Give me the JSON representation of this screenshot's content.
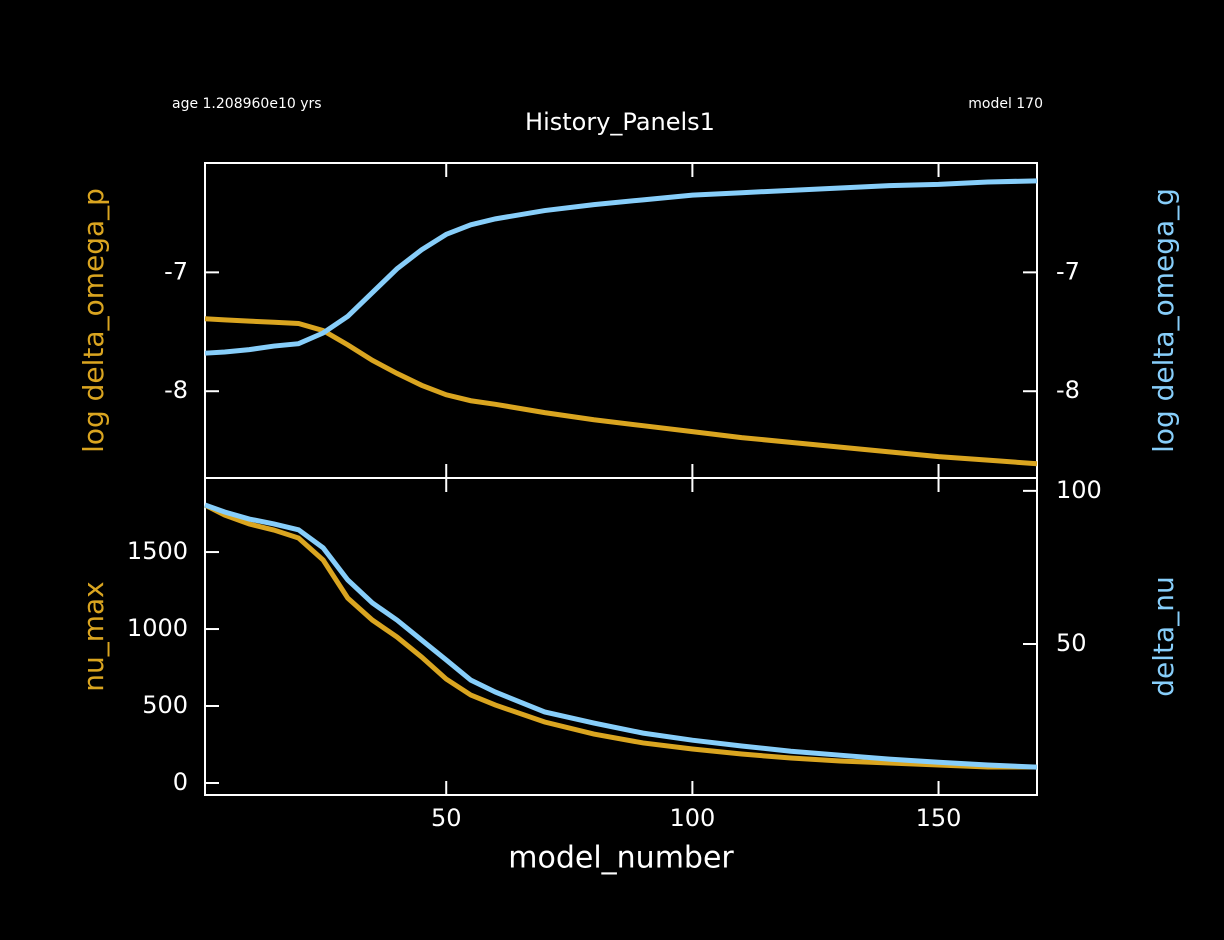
{
  "header": {
    "age": "age 1.208960e10 yrs",
    "title": "History_Panels1",
    "model": "model 170"
  },
  "chart_data": [
    {
      "type": "line",
      "ylabel": "log delta_omega_p",
      "y2label": "log delta_omega_g",
      "x": [
        1,
        5,
        10,
        15,
        20,
        25,
        30,
        35,
        40,
        45,
        50,
        55,
        60,
        70,
        80,
        90,
        100,
        110,
        120,
        130,
        140,
        150,
        160,
        170
      ],
      "xlim": [
        1,
        170
      ],
      "xticks": [
        50,
        100,
        150
      ],
      "ylim": [
        -8.73,
        -6.08
      ],
      "yticks": [
        -7,
        -8
      ],
      "y2lim": [
        -8.73,
        -6.08
      ],
      "y2ticks": [
        -7,
        -8
      ],
      "series": [
        {
          "color": "#daa520",
          "axis": "y",
          "values": [
            -7.39,
            -7.4,
            -7.41,
            -7.42,
            -7.43,
            -7.49,
            -7.61,
            -7.74,
            -7.85,
            -7.95,
            -8.03,
            -8.08,
            -8.11,
            -8.18,
            -8.24,
            -8.29,
            -8.34,
            -8.39,
            -8.43,
            -8.47,
            -8.51,
            -8.55,
            -8.58,
            -8.61
          ]
        },
        {
          "color": "#87cefa",
          "axis": "y2",
          "values": [
            -7.68,
            -7.67,
            -7.65,
            -7.62,
            -7.6,
            -7.51,
            -7.37,
            -7.17,
            -6.97,
            -6.81,
            -6.68,
            -6.6,
            -6.55,
            -6.48,
            -6.43,
            -6.39,
            -6.35,
            -6.33,
            -6.31,
            -6.29,
            -6.27,
            -6.26,
            -6.24,
            -6.23
          ]
        }
      ]
    },
    {
      "type": "line",
      "xlabel": "model_number",
      "ylabel": "nu_max",
      "y2label": "delta_nu",
      "x": [
        1,
        5,
        10,
        15,
        20,
        25,
        30,
        35,
        40,
        45,
        50,
        55,
        60,
        70,
        80,
        90,
        100,
        110,
        120,
        130,
        140,
        150,
        160,
        170
      ],
      "xlim": [
        1,
        170
      ],
      "xticks": [
        50,
        100,
        150
      ],
      "ylim": [
        -78,
        1981
      ],
      "yticks": [
        0,
        500,
        1000,
        1500
      ],
      "y2lim": [
        0.7,
        104.2
      ],
      "y2ticks": [
        50,
        100
      ],
      "series": [
        {
          "color": "#daa520",
          "axis": "y",
          "values": [
            1805,
            1740,
            1682,
            1643,
            1591,
            1448,
            1201,
            1058,
            948,
            818,
            675,
            571,
            506,
            396,
            318,
            260,
            221,
            188,
            162,
            143,
            130,
            117,
            104,
            104
          ]
        },
        {
          "color": "#87cefa",
          "axis": "y2",
          "values": [
            95.4,
            93.1,
            90.8,
            89.2,
            87.3,
            81.4,
            70.9,
            63.4,
            57.8,
            51.3,
            44.8,
            38.2,
            34.3,
            27.8,
            24.2,
            20.9,
            18.6,
            16.7,
            15.0,
            13.7,
            12.4,
            11.4,
            10.5,
            9.8
          ]
        }
      ]
    }
  ]
}
